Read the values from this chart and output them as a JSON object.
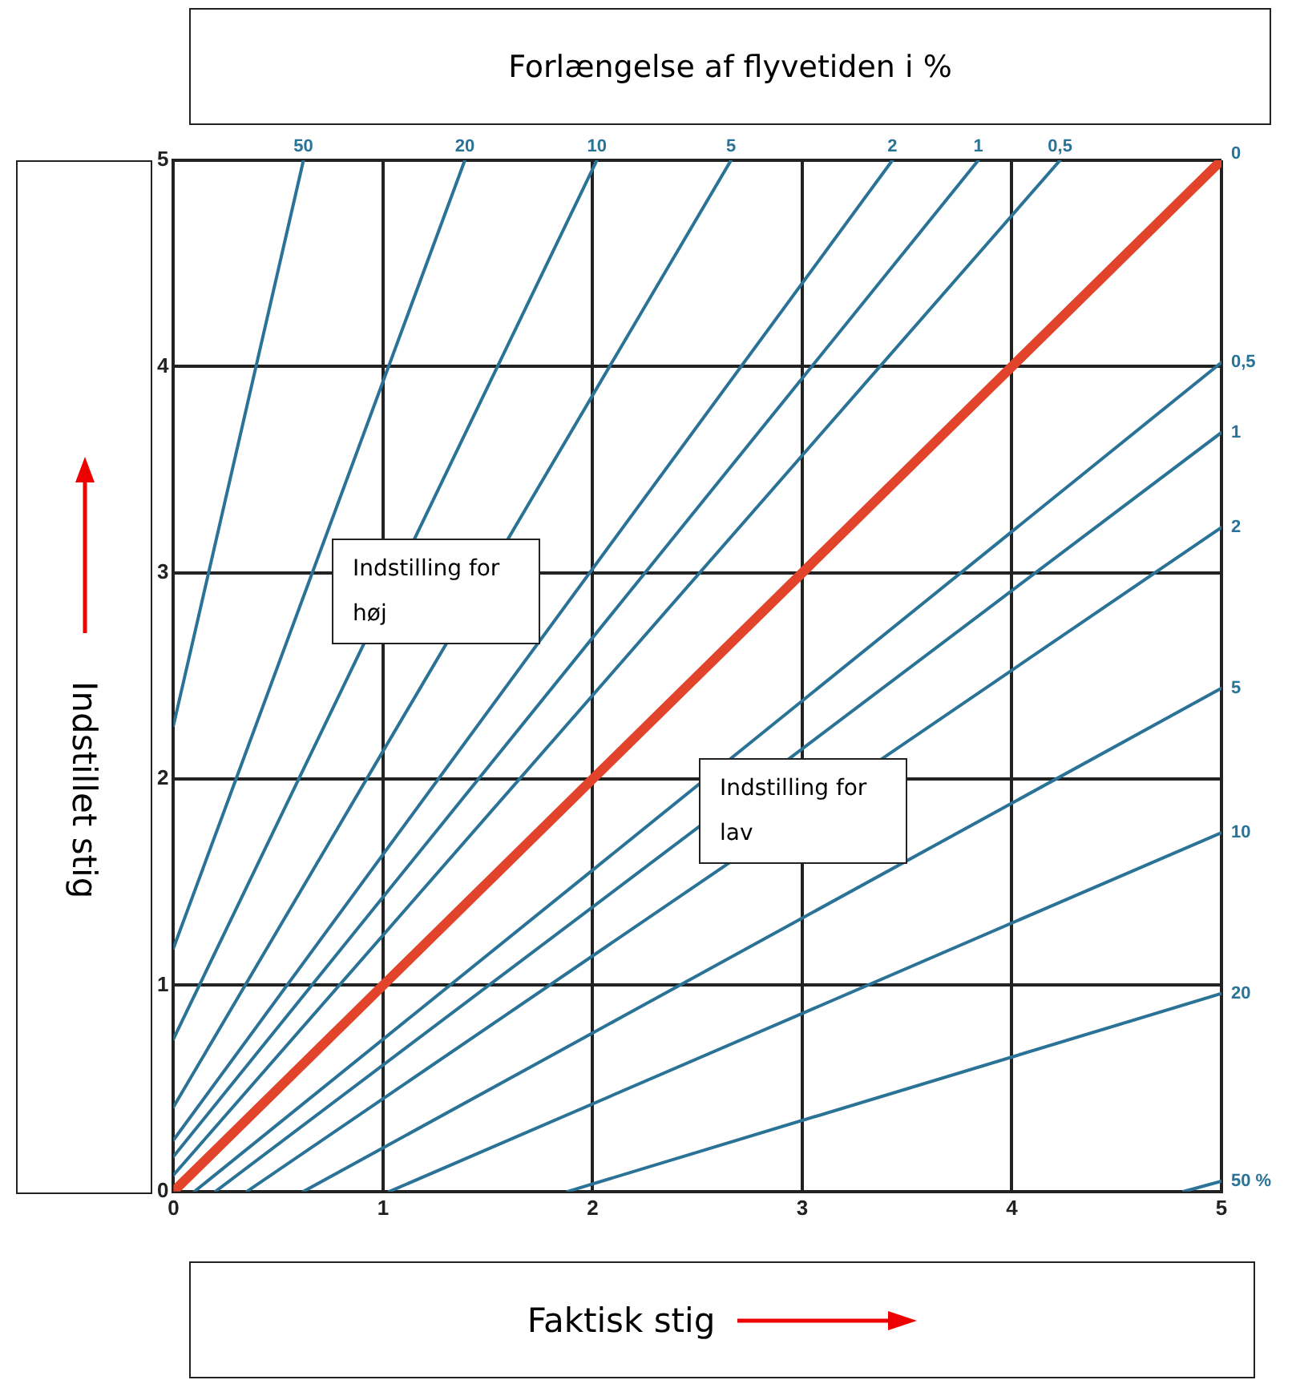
{
  "chart_data": {
    "type": "line",
    "title": "Forlængelse af flyvetiden i %",
    "xlabel": "Faktisk stig",
    "ylabel": "Indstillet stig",
    "xlim": [
      0,
      5
    ],
    "ylim": [
      0,
      5
    ],
    "xticks": [
      0,
      1,
      2,
      3,
      4,
      5
    ],
    "yticks": [
      0,
      1,
      2,
      3,
      4,
      5
    ],
    "grid": true,
    "legend": false,
    "marker": "none",
    "line_style": "solid",
    "annotations": [
      "Indstilling for høj",
      "Indstilling for lav"
    ],
    "series": [
      {
        "name": "50",
        "color": "#2a7396",
        "x": [
          0,
          0.62
        ],
        "values": [
          2.26,
          5
        ]
      },
      {
        "name": "20",
        "color": "#2a7396",
        "x": [
          0,
          1.39
        ],
        "values": [
          1.18,
          5
        ]
      },
      {
        "name": "10",
        "color": "#2a7396",
        "x": [
          0,
          2.02
        ],
        "values": [
          0.74,
          5
        ]
      },
      {
        "name": "5",
        "color": "#2a7396",
        "x": [
          0,
          2.66
        ],
        "values": [
          0.41,
          5
        ]
      },
      {
        "name": "2",
        "color": "#2a7396",
        "x": [
          0,
          3.43
        ],
        "values": [
          0.25,
          5
        ]
      },
      {
        "name": "1",
        "color": "#2a7396",
        "x": [
          0,
          3.84
        ],
        "values": [
          0.17,
          5
        ]
      },
      {
        "name": "0,5",
        "color": "#2a7396",
        "x": [
          0,
          4.23
        ],
        "values": [
          0.08,
          5
        ]
      },
      {
        "name": "0",
        "color": "#e2432b",
        "x": [
          0,
          5
        ],
        "values": [
          0,
          5
        ]
      },
      {
        "name": "0,5",
        "color": "#2a7396",
        "x": [
          0.1,
          5
        ],
        "values": [
          0,
          4.02
        ]
      },
      {
        "name": "1",
        "color": "#2a7396",
        "x": [
          0.2,
          5
        ],
        "values": [
          0,
          3.68
        ]
      },
      {
        "name": "2",
        "color": "#2a7396",
        "x": [
          0.35,
          5
        ],
        "values": [
          0,
          3.22
        ]
      },
      {
        "name": "5",
        "color": "#2a7396",
        "x": [
          0.62,
          5
        ],
        "values": [
          0,
          2.44
        ]
      },
      {
        "name": "10",
        "color": "#2a7396",
        "x": [
          1.03,
          5
        ],
        "values": [
          0,
          1.74
        ]
      },
      {
        "name": "20",
        "color": "#2a7396",
        "x": [
          1.88,
          5
        ],
        "values": [
          0,
          0.96
        ]
      },
      {
        "name": "50 %",
        "color": "#2a7396",
        "x": [
          4.82,
          5
        ],
        "values": [
          0,
          0.05
        ]
      }
    ]
  }
}
